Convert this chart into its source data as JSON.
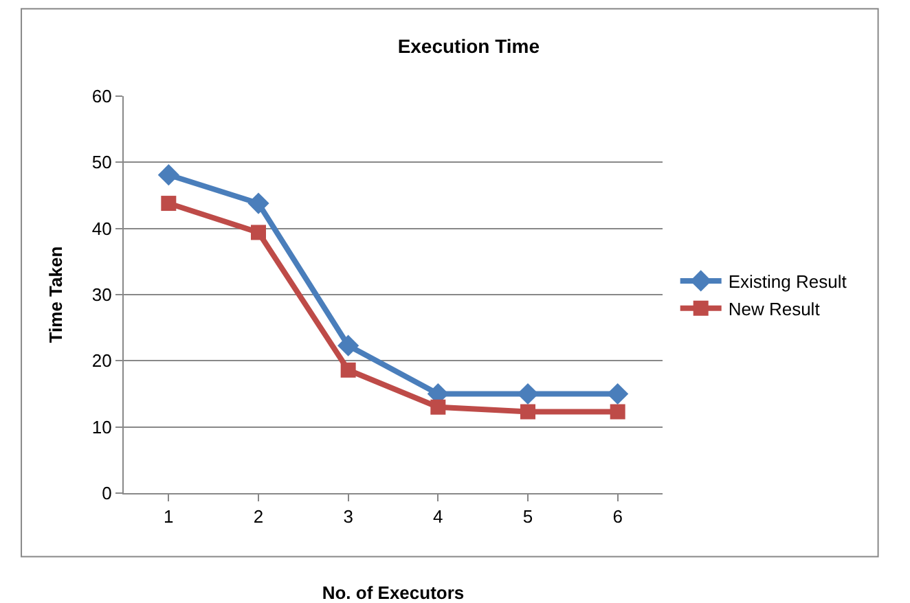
{
  "chart_data": {
    "type": "line",
    "title": "Execution Time",
    "xlabel": "No. of Executors",
    "ylabel": "Time Taken",
    "categories": [
      "1",
      "2",
      "3",
      "4",
      "5",
      "6"
    ],
    "series": [
      {
        "name": "Existing Result",
        "color": "#4a7ebb",
        "marker": "diamond",
        "values": [
          48.1,
          43.8,
          22.3,
          15,
          15,
          15
        ]
      },
      {
        "name": "New Result",
        "color": "#be4b48",
        "marker": "square",
        "values": [
          43.8,
          39.4,
          18.6,
          13,
          12.3,
          12.3
        ]
      }
    ],
    "ylim": [
      0,
      60
    ],
    "yticks": [
      0,
      10,
      20,
      30,
      40,
      50,
      60
    ],
    "grid": "y",
    "legend": "right",
    "line_style": "solid"
  }
}
